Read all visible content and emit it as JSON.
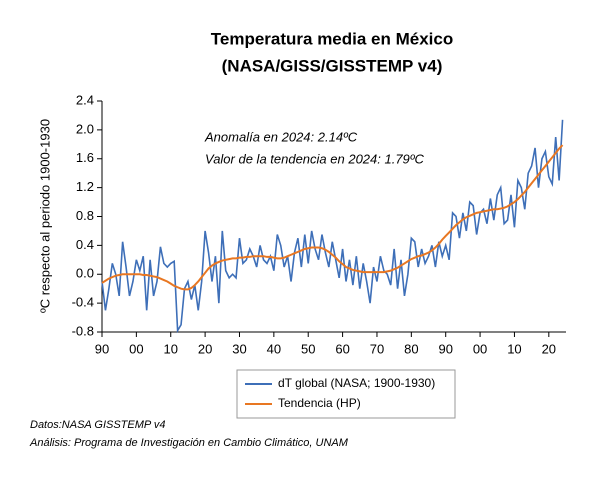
{
  "chart_data": {
    "type": "line",
    "title": "Temperatura media en México",
    "subtitle": "(NASA/GISS/GISSTEMP v4)",
    "ylabel": "ºC respecto al periodo 1900-1930",
    "annotations": [
      "Anomalía en 2024: 2.14ºC",
      "Valor de la tendencia en 2024: 1.79ºC"
    ],
    "notes": [
      "Datos:NASA GISSTEMP v4",
      "Análisis: Programa de Investigación en Cambio Climático, UNAM"
    ],
    "x": [
      1890,
      1891,
      1892,
      1893,
      1894,
      1895,
      1896,
      1897,
      1898,
      1899,
      1900,
      1901,
      1902,
      1903,
      1904,
      1905,
      1906,
      1907,
      1908,
      1909,
      1910,
      1911,
      1912,
      1913,
      1914,
      1915,
      1916,
      1917,
      1918,
      1919,
      1920,
      1921,
      1922,
      1923,
      1924,
      1925,
      1926,
      1927,
      1928,
      1929,
      1930,
      1931,
      1932,
      1933,
      1934,
      1935,
      1936,
      1937,
      1938,
      1939,
      1940,
      1941,
      1942,
      1943,
      1944,
      1945,
      1946,
      1947,
      1948,
      1949,
      1950,
      1951,
      1952,
      1953,
      1954,
      1955,
      1956,
      1957,
      1958,
      1959,
      1960,
      1961,
      1962,
      1963,
      1964,
      1965,
      1966,
      1967,
      1968,
      1969,
      1970,
      1971,
      1972,
      1973,
      1974,
      1975,
      1976,
      1977,
      1978,
      1979,
      1980,
      1981,
      1982,
      1983,
      1984,
      1985,
      1986,
      1987,
      1988,
      1989,
      1990,
      1991,
      1992,
      1993,
      1994,
      1995,
      1996,
      1997,
      1998,
      1999,
      2000,
      2001,
      2002,
      2003,
      2004,
      2005,
      2006,
      2007,
      2008,
      2009,
      2010,
      2011,
      2012,
      2013,
      2014,
      2015,
      2016,
      2017,
      2018,
      2019,
      2020,
      2021,
      2022,
      2023,
      2024
    ],
    "series": [
      {
        "name": "dT global (NASA; 1900-1930)",
        "color": "#3e6fb8",
        "values": [
          -0.1,
          -0.5,
          -0.2,
          0.15,
          0.0,
          -0.3,
          0.45,
          0.1,
          -0.3,
          -0.1,
          0.2,
          0.05,
          0.25,
          -0.5,
          0.2,
          -0.3,
          -0.1,
          0.38,
          0.15,
          0.1,
          0.15,
          0.18,
          -0.78,
          -0.7,
          -0.2,
          -0.1,
          -0.35,
          -0.15,
          -0.5,
          -0.1,
          0.6,
          0.3,
          -0.1,
          0.25,
          -0.4,
          0.6,
          0.05,
          -0.05,
          0.0,
          -0.05,
          0.5,
          0.15,
          0.2,
          0.35,
          0.25,
          0.1,
          0.4,
          0.2,
          0.15,
          0.25,
          0.05,
          0.55,
          0.4,
          0.1,
          0.25,
          -0.1,
          0.3,
          0.5,
          0.1,
          0.55,
          0.15,
          0.6,
          0.35,
          0.2,
          0.55,
          0.3,
          0.1,
          0.45,
          0.2,
          -0.05,
          0.35,
          -0.1,
          0.2,
          -0.15,
          0.25,
          -0.2,
          0.15,
          -0.1,
          -0.4,
          0.1,
          -0.1,
          0.25,
          0.05,
          0.0,
          -0.15,
          0.35,
          -0.2,
          0.2,
          -0.3,
          0.0,
          0.5,
          0.45,
          0.1,
          0.35,
          0.15,
          0.25,
          0.4,
          0.1,
          0.45,
          0.25,
          0.4,
          0.2,
          0.85,
          0.8,
          0.5,
          0.85,
          0.6,
          1.0,
          0.95,
          0.55,
          0.85,
          0.9,
          0.7,
          1.05,
          0.75,
          1.1,
          1.2,
          0.7,
          0.75,
          1.1,
          0.65,
          1.3,
          1.2,
          0.9,
          1.4,
          1.5,
          1.75,
          1.2,
          1.6,
          1.7,
          1.35,
          1.25,
          1.9,
          1.3,
          2.14
        ]
      },
      {
        "name": "Tendencia (HP)",
        "color": "#e87722",
        "values": [
          -0.12,
          -0.09,
          -0.06,
          -0.04,
          -0.02,
          -0.01,
          0.0,
          0.0,
          0.0,
          0.0,
          0.0,
          0.0,
          -0.01,
          -0.01,
          -0.02,
          -0.03,
          -0.04,
          -0.06,
          -0.08,
          -0.1,
          -0.13,
          -0.16,
          -0.18,
          -0.2,
          -0.21,
          -0.21,
          -0.19,
          -0.15,
          -0.1,
          -0.04,
          0.02,
          0.08,
          0.12,
          0.15,
          0.17,
          0.19,
          0.2,
          0.21,
          0.22,
          0.22,
          0.23,
          0.23,
          0.24,
          0.24,
          0.25,
          0.25,
          0.25,
          0.25,
          0.24,
          0.24,
          0.23,
          0.22,
          0.22,
          0.23,
          0.25,
          0.27,
          0.29,
          0.31,
          0.33,
          0.35,
          0.36,
          0.37,
          0.37,
          0.37,
          0.36,
          0.34,
          0.31,
          0.27,
          0.23,
          0.18,
          0.14,
          0.1,
          0.08,
          0.06,
          0.05,
          0.04,
          0.03,
          0.03,
          0.03,
          0.03,
          0.03,
          0.03,
          0.03,
          0.04,
          0.05,
          0.07,
          0.09,
          0.12,
          0.15,
          0.18,
          0.21,
          0.23,
          0.25,
          0.26,
          0.28,
          0.3,
          0.33,
          0.37,
          0.42,
          0.48,
          0.53,
          0.58,
          0.63,
          0.68,
          0.72,
          0.76,
          0.79,
          0.81,
          0.83,
          0.85,
          0.86,
          0.87,
          0.88,
          0.89,
          0.9,
          0.9,
          0.91,
          0.92,
          0.94,
          0.97,
          1.0,
          1.04,
          1.09,
          1.14,
          1.2,
          1.26,
          1.32,
          1.38,
          1.44,
          1.5,
          1.56,
          1.62,
          1.68,
          1.74,
          1.79
        ]
      }
    ],
    "xlim": [
      1890,
      2025
    ],
    "xticks": [
      {
        "value": 1890,
        "label": "90"
      },
      {
        "value": 1900,
        "label": "00"
      },
      {
        "value": 1910,
        "label": "10"
      },
      {
        "value": 1920,
        "label": "20"
      },
      {
        "value": 1930,
        "label": "30"
      },
      {
        "value": 1940,
        "label": "40"
      },
      {
        "value": 1950,
        "label": "50"
      },
      {
        "value": 1960,
        "label": "60"
      },
      {
        "value": 1970,
        "label": "70"
      },
      {
        "value": 1980,
        "label": "80"
      },
      {
        "value": 1990,
        "label": "90"
      },
      {
        "value": 2000,
        "label": "00"
      },
      {
        "value": 2010,
        "label": "10"
      },
      {
        "value": 2020,
        "label": "20"
      }
    ],
    "ylim": [
      -0.8,
      2.4
    ],
    "yticks": [
      -0.8,
      -0.4,
      {
        "value": 0,
        "label": "0.0"
      },
      0.4,
      0.8,
      1.2,
      1.6,
      {
        "value": 2,
        "label": "2.0"
      },
      2.4
    ],
    "legend": "bottom"
  }
}
